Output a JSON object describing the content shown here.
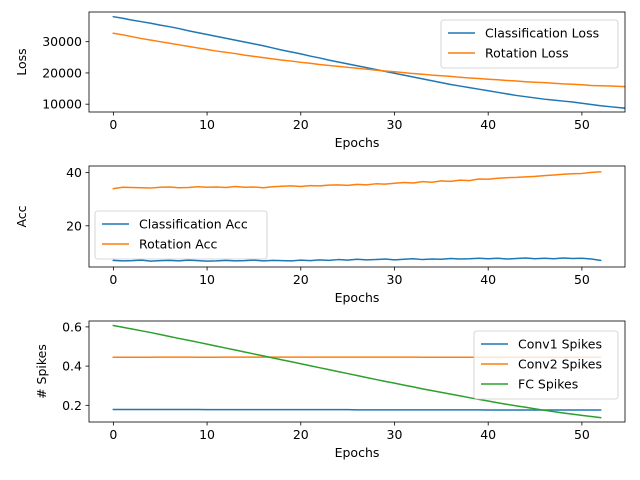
{
  "chart_data": [
    {
      "type": "line",
      "xlabel": "Epochs",
      "ylabel": "Loss",
      "xlim": [
        -2.6,
        54.6
      ],
      "ylim": [
        7500,
        39500
      ],
      "xticks": [
        0,
        10,
        20,
        30,
        40,
        50
      ],
      "yticks": [
        10000,
        20000,
        30000
      ],
      "ytick_labels": [
        "10000",
        "20000",
        "30000"
      ],
      "legend_position": "upper right",
      "series": [
        {
          "name": "Classification Loss",
          "color": "#1f77b4",
          "values": [
            38000,
            37500,
            36900,
            36400,
            35900,
            35300,
            34800,
            34200,
            33500,
            32900,
            32300,
            31700,
            31100,
            30500,
            29900,
            29300,
            28700,
            28000,
            27300,
            26700,
            26100,
            25400,
            24800,
            24100,
            23500,
            22900,
            22300,
            21700,
            21100,
            20500,
            19900,
            19300,
            18700,
            18100,
            17500,
            16900,
            16300,
            15800,
            15300,
            14800,
            14300,
            13800,
            13300,
            12800,
            12400,
            12000,
            11600,
            11300,
            11000,
            10700,
            10300,
            9900,
            9500,
            9200,
            8900,
            8600
          ]
        },
        {
          "name": "Rotation Loss",
          "color": "#ff7f0e",
          "values": [
            32700,
            32200,
            31600,
            31000,
            30500,
            30000,
            29500,
            29000,
            28500,
            28000,
            27500,
            27000,
            26600,
            26200,
            25700,
            25300,
            24900,
            24500,
            24100,
            23800,
            23400,
            23100,
            22700,
            22400,
            22100,
            21800,
            21500,
            21200,
            20900,
            20600,
            20400,
            20100,
            19800,
            19600,
            19300,
            19100,
            18900,
            18600,
            18400,
            18200,
            18000,
            17800,
            17600,
            17400,
            17200,
            17000,
            16900,
            16700,
            16500,
            16400,
            16200,
            16000,
            15900,
            15800,
            15700,
            15600
          ]
        }
      ]
    },
    {
      "type": "line",
      "xlabel": "Epochs",
      "ylabel": "Acc",
      "xlim": [
        -2.6,
        54.6
      ],
      "ylim": [
        4.5,
        42.5
      ],
      "xticks": [
        0,
        10,
        20,
        30,
        40,
        50
      ],
      "yticks": [
        20,
        40
      ],
      "ytick_labels": [
        "20",
        "40"
      ],
      "legend_position": "lower left",
      "series": [
        {
          "name": "Classification Acc",
          "color": "#1f77b4",
          "values": [
            7.0,
            6.8,
            6.9,
            7.1,
            6.7,
            6.9,
            7.0,
            6.8,
            7.1,
            6.9,
            6.7,
            6.8,
            7.0,
            6.8,
            6.9,
            7.1,
            6.8,
            7.0,
            6.9,
            6.8,
            7.1,
            6.9,
            7.2,
            7.0,
            7.3,
            7.1,
            7.4,
            7.2,
            7.3,
            7.5,
            7.2,
            7.4,
            7.6,
            7.3,
            7.5,
            7.4,
            7.7,
            7.5,
            7.6,
            7.8,
            7.6,
            7.8,
            7.5,
            7.7,
            7.9,
            7.6,
            7.8,
            7.6,
            7.9,
            7.7,
            7.8,
            7.5,
            7.0
          ],
          "x_start": 0
        },
        {
          "name": "Rotation Acc",
          "color": "#ff7f0e",
          "values": [
            34.0,
            34.5,
            34.4,
            34.3,
            34.2,
            34.5,
            34.6,
            34.3,
            34.4,
            34.7,
            34.5,
            34.6,
            34.4,
            34.8,
            34.5,
            34.6,
            34.3,
            34.7,
            34.9,
            35.0,
            34.8,
            35.1,
            35.0,
            35.3,
            35.4,
            35.2,
            35.6,
            35.4,
            35.8,
            35.7,
            36.0,
            36.3,
            36.1,
            36.6,
            36.4,
            36.9,
            36.7,
            37.2,
            37.0,
            37.6,
            37.5,
            37.9,
            38.1,
            38.2,
            38.4,
            38.6,
            38.9,
            39.1,
            39.4,
            39.6,
            39.7,
            40.1,
            40.3
          ],
          "x_start": 0
        }
      ]
    },
    {
      "type": "line",
      "xlabel": "Epochs",
      "ylabel": "# Spikes",
      "xlim": [
        -2.6,
        54.6
      ],
      "ylim": [
        0.115,
        0.63
      ],
      "xticks": [
        0,
        10,
        20,
        30,
        40,
        50
      ],
      "yticks": [
        0.2,
        0.4,
        0.6
      ],
      "ytick_labels": [
        "0.2",
        "0.4",
        "0.6"
      ],
      "legend_position": "upper right",
      "series": [
        {
          "name": "Conv1 Spikes",
          "color": "#1f77b4",
          "values": [
            0.179,
            0.179,
            0.179,
            0.179,
            0.179,
            0.179,
            0.179,
            0.179,
            0.179,
            0.179,
            0.178,
            0.178,
            0.178,
            0.178,
            0.178,
            0.178,
            0.178,
            0.178,
            0.178,
            0.178,
            0.178,
            0.178,
            0.178,
            0.178,
            0.178,
            0.178,
            0.177,
            0.177,
            0.177,
            0.177,
            0.177,
            0.177,
            0.177,
            0.177,
            0.177,
            0.177,
            0.177,
            0.177,
            0.177,
            0.177,
            0.176,
            0.176,
            0.176,
            0.176,
            0.176,
            0.176,
            0.176,
            0.176,
            0.176,
            0.176,
            0.176,
            0.176,
            0.176
          ]
        },
        {
          "name": "Conv2 Spikes",
          "color": "#ff7f0e",
          "values": [
            0.445,
            0.445,
            0.445,
            0.445,
            0.445,
            0.446,
            0.446,
            0.446,
            0.446,
            0.445,
            0.445,
            0.445,
            0.446,
            0.446,
            0.446,
            0.446,
            0.446,
            0.446,
            0.446,
            0.446,
            0.446,
            0.446,
            0.446,
            0.446,
            0.446,
            0.446,
            0.446,
            0.446,
            0.446,
            0.446,
            0.446,
            0.446,
            0.446,
            0.445,
            0.445,
            0.445,
            0.445,
            0.445,
            0.445,
            0.445,
            0.445,
            0.445,
            0.445,
            0.445,
            0.445,
            0.445,
            0.445,
            0.445,
            0.445,
            0.445,
            0.445,
            0.445,
            0.445
          ]
        },
        {
          "name": "FC Spikes",
          "color": "#2ca02c",
          "values": [
            0.607,
            0.598,
            0.589,
            0.58,
            0.571,
            0.561,
            0.551,
            0.541,
            0.532,
            0.522,
            0.512,
            0.502,
            0.492,
            0.482,
            0.472,
            0.462,
            0.452,
            0.442,
            0.432,
            0.422,
            0.412,
            0.402,
            0.392,
            0.382,
            0.372,
            0.362,
            0.352,
            0.342,
            0.332,
            0.322,
            0.313,
            0.303,
            0.294,
            0.284,
            0.275,
            0.266,
            0.257,
            0.248,
            0.239,
            0.23,
            0.222,
            0.213,
            0.205,
            0.197,
            0.19,
            0.182,
            0.175,
            0.168,
            0.161,
            0.155,
            0.149,
            0.143,
            0.137
          ]
        }
      ]
    }
  ]
}
